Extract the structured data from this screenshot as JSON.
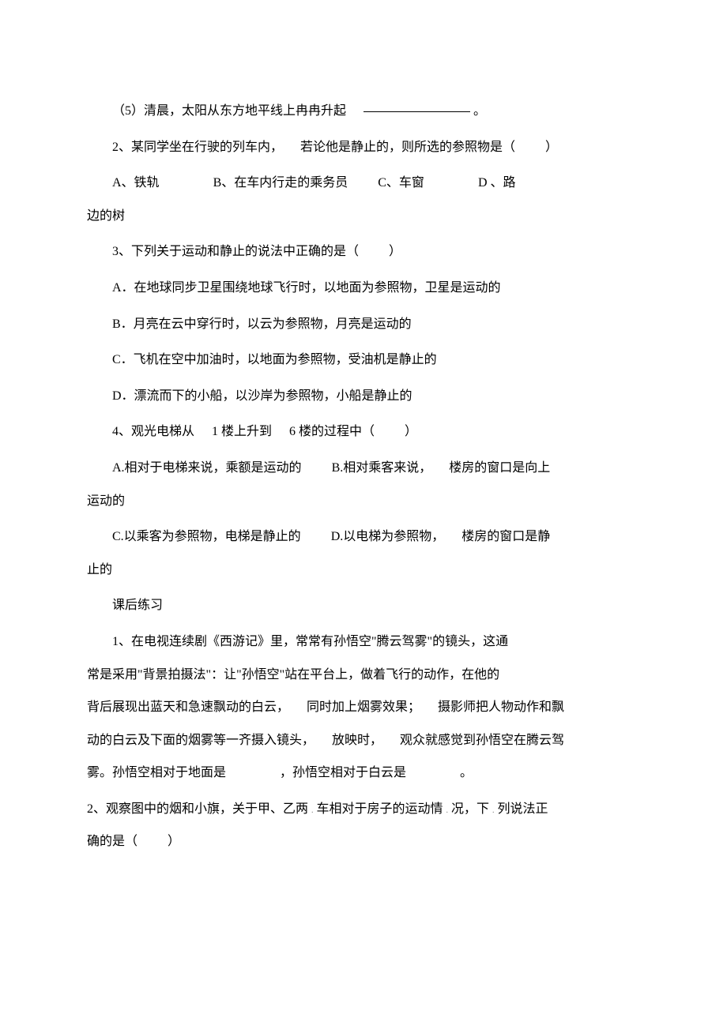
{
  "page": {
    "q5": "（5）清晨，太阳从东方地平线上冉冉升起",
    "q5_end": "。",
    "q2": "2、某同学坐在行驶的列车内，",
    "q2b": "若论他是静止的，则所选的参照物是（",
    "q2c": "）",
    "q2_A": "A、铁轨",
    "q2_B": "B、在车内行走的乘务员",
    "q2_C": "C、车窗",
    "q2_D": "D 、路",
    "q2_D2": "边的树",
    "q3": "3、下列关于运动和静止的说法中正确的是（",
    "q3_close": "）",
    "q3_A": "A．在地球同步卫星围绕地球飞行时，以地面为参照物，卫星是运动的",
    "q3_B": "B．月亮在云中穿行时，以云为参照物，月亮是运动的",
    "q3_C": "C．飞机在空中加油时，以地面为参照物，受油机是静止的",
    "q3_D": "D．漂流而下的小船，以沙岸为参照物，小船是静止的",
    "q4": "4、观光电梯从",
    "q4b": "1 楼上升到",
    "q4c": "6 楼的过程中（",
    "q4_close": "）",
    "q4_A": "A.相对于电梯来说，乘额是运动的",
    "q4_B": "B.相对乘客来说，",
    "q4_Bb": "楼房的窗口是向上",
    "q4_B2": "运动的",
    "q4_C": "C.以乘客为参照物，电梯是静止的",
    "q4_D": "D.以电梯为参照物，",
    "q4_Db": "楼房的窗口是静",
    "q4_D2": "止的",
    "post_header": "课后练习",
    "p1a": "1、在电视连续剧《西游记》里，常常有孙悟空\"腾云驾雾\"的镜头，这通",
    "p1b": "常是采用\"背景拍摄法\"：让\"孙悟空\"站在平台上，做着飞行的动作，在他的",
    "p1c": "背后展现出蓝天和急速飘动的白云，",
    "p1c2": "同时加上烟雾效果；",
    "p1c3": "摄影师把人物动作和飘",
    "p1d": "动的白云及下面的烟雾等一齐摄入镜头，",
    "p1d2": "放映时，",
    "p1d3": "观众就感觉到孙悟空在腾云驾",
    "p1e": "雾。孙悟空相对于地面是",
    "p1e2": "，孙悟空相对于白云是",
    "p1e3": "。",
    "p2a": "2、观察图中的烟和小旗，关于甲、乙两",
    "p2a2": "车相对于房子的运动情",
    "p2a3": "况，下",
    "p2a4": "列说法正",
    "p2b": "确的是（",
    "p2b2": "）"
  }
}
